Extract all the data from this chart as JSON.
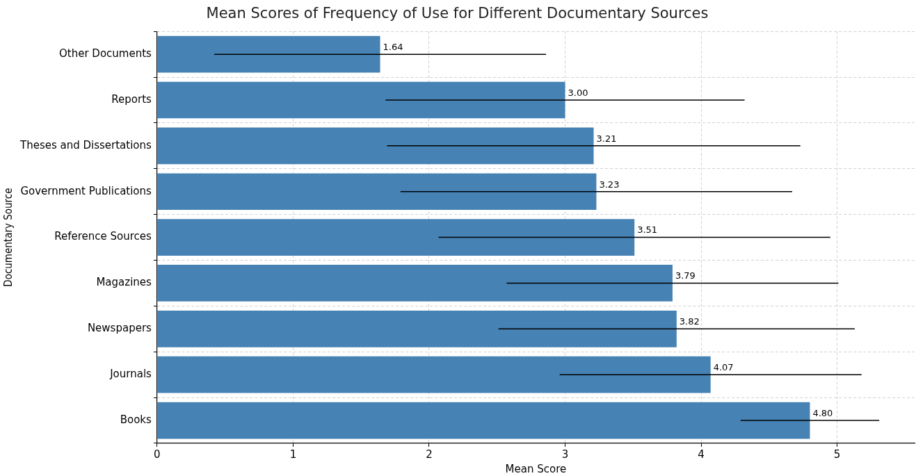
{
  "chart_data": {
    "type": "bar",
    "orientation": "horizontal",
    "title": "Mean Scores of Frequency of Use for Different Documentary Sources",
    "xlabel": "Mean Score",
    "ylabel": "Documentary Source",
    "categories": [
      "Other Documents",
      "Reports",
      "Theses and Dissertations",
      "Government Publications",
      "Reference Sources",
      "Magazines",
      "Newspapers",
      "Journals",
      "Books"
    ],
    "values": [
      1.64,
      3.0,
      3.21,
      3.23,
      3.51,
      3.79,
      3.82,
      4.07,
      4.8
    ],
    "errors": [
      1.22,
      1.32,
      1.52,
      1.44,
      1.44,
      1.22,
      1.31,
      1.11,
      0.51
    ],
    "value_labels": [
      "1.64",
      "3.00",
      "3.21",
      "3.23",
      "3.51",
      "3.79",
      "3.82",
      "4.07",
      "4.80"
    ],
    "color": "#4682b4",
    "xlim": [
      0,
      5.57
    ],
    "xticks": [
      0,
      1,
      2,
      3,
      4,
      5
    ],
    "grid": true
  }
}
